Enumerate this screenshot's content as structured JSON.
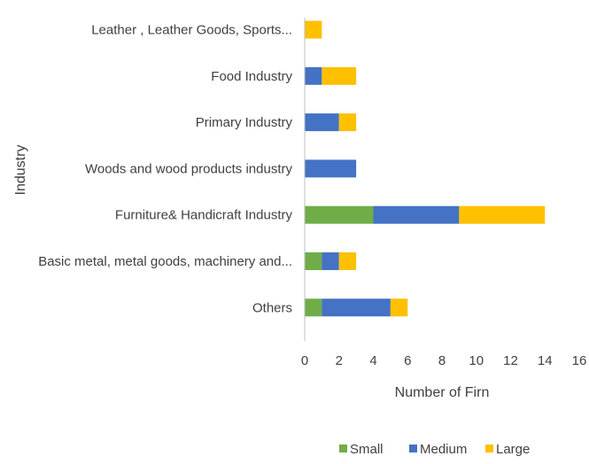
{
  "chart_data": {
    "type": "bar",
    "orientation": "horizontal",
    "stacked": true,
    "categories": [
      "Leather , Leather Goods, Sports...",
      "Food Industry",
      "Primary Industry",
      "Woods and wood products industry",
      "Furniture& Handicraft Industry",
      "Basic metal, metal goods, machinery and...",
      "Others"
    ],
    "series": [
      {
        "name": "Small",
        "color": "#70ad47",
        "values": [
          0,
          0,
          0,
          0,
          4,
          1,
          1
        ]
      },
      {
        "name": "Medium",
        "color": "#4472c4",
        "values": [
          0,
          1,
          2,
          3,
          5,
          1,
          4
        ]
      },
      {
        "name": "Large",
        "color": "#ffc000",
        "values": [
          1,
          2,
          1,
          0,
          5,
          1,
          1
        ]
      }
    ],
    "title": "",
    "xlabel": "Number of Firn",
    "ylabel": "Industry",
    "xlim": [
      0,
      16
    ],
    "xticks": [
      "0",
      "2",
      "4",
      "6",
      "8",
      "10",
      "12",
      "14",
      "16"
    ],
    "grid": false,
    "legend_position": "bottom"
  }
}
